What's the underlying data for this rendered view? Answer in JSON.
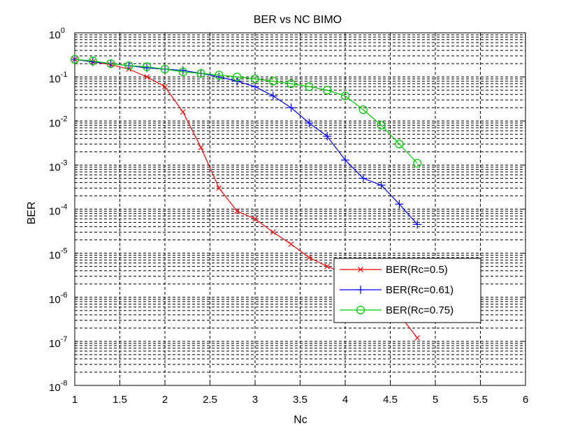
{
  "chart_data": {
    "type": "line",
    "title": "BER vs NC BIMO",
    "xlabel": "Nc",
    "ylabel": "BER",
    "xlim": [
      1,
      6
    ],
    "ylim": [
      1e-08,
      1
    ],
    "yscale": "log",
    "grid": true,
    "legend_position": "lower-right",
    "x_ticks": [
      "1",
      "1.5",
      "2",
      "2.5",
      "3",
      "3.5",
      "4",
      "4.5",
      "5",
      "5.5",
      "6"
    ],
    "y_ticks": [
      {
        "base": "10",
        "exp": "-8"
      },
      {
        "base": "10",
        "exp": "-7"
      },
      {
        "base": "10",
        "exp": "-6"
      },
      {
        "base": "10",
        "exp": "-5"
      },
      {
        "base": "10",
        "exp": "-4"
      },
      {
        "base": "10",
        "exp": "-3"
      },
      {
        "base": "10",
        "exp": "-2"
      },
      {
        "base": "10",
        "exp": "-1"
      },
      {
        "base": "10",
        "exp": "0"
      }
    ],
    "series": [
      {
        "name": "BER(Rc=0.5)",
        "color": "#ff0000",
        "marker": "x",
        "x": [
          1.0,
          1.2,
          1.4,
          1.6,
          1.8,
          2.0,
          2.2,
          2.4,
          2.6,
          2.8,
          3.0,
          3.2,
          3.4,
          3.6,
          3.8,
          4.0,
          4.2,
          4.4,
          4.6,
          4.8
        ],
        "y": [
          0.25,
          0.22,
          0.19,
          0.15,
          0.1,
          0.06,
          0.016,
          0.0025,
          0.0003,
          9e-05,
          6e-05,
          3e-05,
          1.6e-05,
          8e-06,
          5e-06,
          3.5e-06,
          1.5e-06,
          9e-07,
          4e-07,
          1.2e-07
        ]
      },
      {
        "name": "BER(Rc=0.61)",
        "color": "#0000ff",
        "marker": "+",
        "x": [
          1.0,
          1.2,
          1.4,
          1.6,
          1.8,
          2.0,
          2.2,
          2.4,
          2.6,
          2.8,
          3.0,
          3.2,
          3.4,
          3.6,
          3.8,
          4.0,
          4.2,
          4.4,
          4.6,
          4.8
        ],
        "y": [
          0.25,
          0.22,
          0.2,
          0.18,
          0.16,
          0.15,
          0.14,
          0.12,
          0.1,
          0.08,
          0.06,
          0.037,
          0.02,
          0.009,
          0.0045,
          0.0013,
          0.0005,
          0.00035,
          0.00013,
          4.5e-05
        ]
      },
      {
        "name": "BER(Rc=0.75)",
        "color": "#00cc00",
        "marker": "o",
        "x": [
          1.0,
          1.2,
          1.4,
          1.6,
          1.8,
          2.0,
          2.2,
          2.4,
          2.6,
          2.8,
          3.0,
          3.2,
          3.4,
          3.6,
          3.8,
          4.0,
          4.2,
          4.4,
          4.6,
          4.8
        ],
        "y": [
          0.25,
          0.23,
          0.2,
          0.18,
          0.17,
          0.15,
          0.13,
          0.12,
          0.11,
          0.1,
          0.09,
          0.08,
          0.07,
          0.06,
          0.05,
          0.037,
          0.018,
          0.008,
          0.003,
          0.0011
        ]
      }
    ]
  }
}
